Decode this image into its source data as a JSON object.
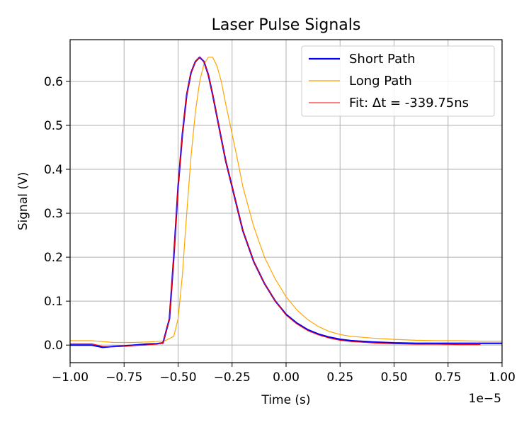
{
  "chart_data": {
    "type": "line",
    "title": "Laser Pulse Signals",
    "xlabel": "Time (s)",
    "ylabel": "Signal (V)",
    "x_offset_label": "1e−5",
    "xlim": [
      -1.0,
      1.0
    ],
    "ylim": [
      -0.04,
      0.695
    ],
    "x_ticks": [
      -1.0,
      -0.75,
      -0.5,
      -0.25,
      0.0,
      0.25,
      0.5,
      0.75,
      1.0
    ],
    "x_tick_labels": [
      "−1.00",
      "−0.75",
      "−0.50",
      "−0.25",
      "0.00",
      "0.25",
      "0.50",
      "0.75",
      "1.00"
    ],
    "y_ticks": [
      0.0,
      0.1,
      0.2,
      0.3,
      0.4,
      0.5,
      0.6
    ],
    "y_tick_labels": [
      "0.0",
      "0.1",
      "0.2",
      "0.3",
      "0.4",
      "0.5",
      "0.6"
    ],
    "grid": true,
    "legend_position": "upper right",
    "series": [
      {
        "name": "Short Path",
        "color": "#0000ff",
        "x": [
          -1.0,
          -0.9,
          -0.85,
          -0.8,
          -0.75,
          -0.7,
          -0.65,
          -0.6,
          -0.57,
          -0.54,
          -0.52,
          -0.5,
          -0.48,
          -0.46,
          -0.44,
          -0.42,
          -0.4,
          -0.38,
          -0.36,
          -0.34,
          -0.32,
          -0.3,
          -0.28,
          -0.25,
          -0.22,
          -0.2,
          -0.15,
          -0.1,
          -0.05,
          0.0,
          0.05,
          0.1,
          0.15,
          0.2,
          0.25,
          0.3,
          0.4,
          0.5,
          0.6,
          0.7,
          0.8,
          0.9,
          1.0
        ],
        "y": [
          0.0,
          0.0,
          -0.005,
          -0.003,
          -0.002,
          0.0,
          0.002,
          0.003,
          0.005,
          0.06,
          0.2,
          0.36,
          0.48,
          0.57,
          0.62,
          0.645,
          0.655,
          0.645,
          0.615,
          0.57,
          0.52,
          0.47,
          0.42,
          0.36,
          0.3,
          0.26,
          0.19,
          0.14,
          0.1,
          0.07,
          0.05,
          0.035,
          0.025,
          0.018,
          0.013,
          0.01,
          0.007,
          0.005,
          0.004,
          0.004,
          0.004,
          0.004,
          0.004
        ]
      },
      {
        "name": "Long Path",
        "color": "#ffa500",
        "x": [
          -1.0,
          -0.9,
          -0.85,
          -0.8,
          -0.75,
          -0.7,
          -0.65,
          -0.6,
          -0.56,
          -0.52,
          -0.5,
          -0.48,
          -0.46,
          -0.44,
          -0.42,
          -0.4,
          -0.38,
          -0.36,
          -0.34,
          -0.32,
          -0.3,
          -0.28,
          -0.25,
          -0.22,
          -0.2,
          -0.15,
          -0.1,
          -0.05,
          0.0,
          0.05,
          0.1,
          0.15,
          0.2,
          0.25,
          0.3,
          0.4,
          0.5,
          0.6,
          0.7,
          0.8,
          0.9,
          1.0
        ],
        "y": [
          0.01,
          0.01,
          0.008,
          0.006,
          0.006,
          0.006,
          0.007,
          0.008,
          0.01,
          0.02,
          0.06,
          0.16,
          0.3,
          0.43,
          0.53,
          0.6,
          0.64,
          0.655,
          0.655,
          0.635,
          0.6,
          0.55,
          0.48,
          0.41,
          0.36,
          0.27,
          0.2,
          0.15,
          0.11,
          0.08,
          0.058,
          0.042,
          0.031,
          0.024,
          0.02,
          0.016,
          0.013,
          0.011,
          0.01,
          0.01,
          0.009,
          0.009
        ]
      },
      {
        "name": "Fit: Δt = -339.75ns",
        "color": "#ff0000",
        "x": [
          -1.0,
          -0.9,
          -0.85,
          -0.8,
          -0.75,
          -0.7,
          -0.65,
          -0.6,
          -0.57,
          -0.54,
          -0.52,
          -0.5,
          -0.48,
          -0.46,
          -0.44,
          -0.42,
          -0.4,
          -0.38,
          -0.36,
          -0.34,
          -0.32,
          -0.3,
          -0.28,
          -0.25,
          -0.22,
          -0.2,
          -0.15,
          -0.1,
          -0.05,
          0.0,
          0.05,
          0.1,
          0.15,
          0.2,
          0.25,
          0.3,
          0.4,
          0.5,
          0.6,
          0.7,
          0.8,
          0.9
        ],
        "y": [
          0.003,
          0.003,
          -0.003,
          -0.004,
          -0.003,
          -0.001,
          0.0,
          0.002,
          0.005,
          0.06,
          0.2,
          0.36,
          0.48,
          0.57,
          0.62,
          0.645,
          0.655,
          0.645,
          0.615,
          0.57,
          0.52,
          0.47,
          0.42,
          0.36,
          0.3,
          0.26,
          0.19,
          0.14,
          0.1,
          0.068,
          0.048,
          0.033,
          0.023,
          0.016,
          0.011,
          0.008,
          0.005,
          0.003,
          0.002,
          0.002,
          0.001,
          0.001
        ]
      }
    ]
  }
}
